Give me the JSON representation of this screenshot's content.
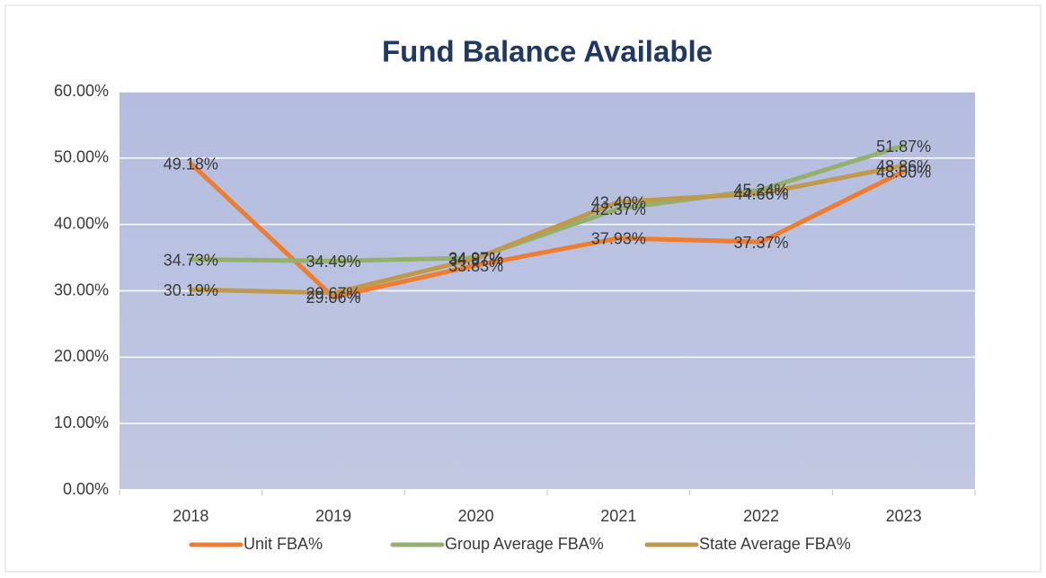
{
  "chart_data": {
    "type": "line",
    "title": "Fund Balance Available",
    "categories": [
      "2018",
      "2019",
      "2020",
      "2021",
      "2022",
      "2023"
    ],
    "series": [
      {
        "name": "Unit FBA%",
        "color": "#ed7d31",
        "values": [
          49.18,
          29.06,
          33.83,
          37.93,
          37.37,
          48.0
        ],
        "value_labels": [
          "49.18%",
          "29.06%",
          "33.83%",
          "37.93%",
          "37.37%",
          "48.00%"
        ]
      },
      {
        "name": "Group Average FBA%",
        "color": "#93b06c",
        "values": [
          34.73,
          34.49,
          34.97,
          42.37,
          45.24,
          51.87
        ],
        "value_labels": [
          "34.73%",
          "34.49%",
          "34.97%",
          "42.37%",
          "45.24%",
          "51.87%"
        ]
      },
      {
        "name": "State Average FBA%",
        "color": "#bf9a4c",
        "values": [
          30.19,
          29.67,
          34.87,
          43.4,
          44.66,
          48.86
        ],
        "value_labels": [
          "30.19%",
          "29.67%",
          "34.87%",
          "43.40%",
          "44.66%",
          "48.86%"
        ]
      }
    ],
    "ylim": [
      0,
      60
    ],
    "yticks": [
      {
        "value": 0,
        "label": "0.00%"
      },
      {
        "value": 10,
        "label": "10.00%"
      },
      {
        "value": 20,
        "label": "20.00%"
      },
      {
        "value": 30,
        "label": "30.00%"
      },
      {
        "value": 40,
        "label": "40.00%"
      },
      {
        "value": 50,
        "label": "50.00%"
      },
      {
        "value": 60,
        "label": "60.00%"
      }
    ],
    "grid": true,
    "legend": "bottom"
  }
}
